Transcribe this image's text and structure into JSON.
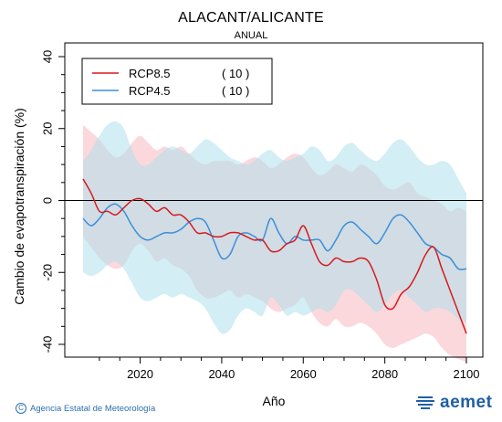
{
  "title": "ALACANT/ALICANTE",
  "subtitle": "ANUAL",
  "credit": "Agencia Estatal de Meteorología",
  "logo_text": "aemet",
  "chart_data": {
    "type": "line",
    "xlabel": "Año",
    "ylabel": "Cambio de evapotranspiración (%)",
    "xlim": [
      2006,
      2100
    ],
    "ylim": [
      -40,
      40
    ],
    "xticks": [
      2020,
      2040,
      2060,
      2080,
      2100
    ],
    "yticks": [
      -40,
      -20,
      0,
      20,
      40
    ],
    "zero_line": 0,
    "legend_position": "top-left",
    "x": [
      2006,
      2008,
      2010,
      2012,
      2014,
      2016,
      2018,
      2020,
      2022,
      2024,
      2026,
      2028,
      2030,
      2032,
      2034,
      2036,
      2038,
      2040,
      2042,
      2044,
      2046,
      2048,
      2050,
      2052,
      2054,
      2056,
      2058,
      2060,
      2062,
      2064,
      2066,
      2068,
      2070,
      2072,
      2074,
      2076,
      2078,
      2080,
      2082,
      2084,
      2086,
      2088,
      2090,
      2092,
      2094,
      2096,
      2098,
      2100
    ],
    "series": [
      {
        "name": "RCP8.5",
        "count": "( 10 )",
        "color": "#d7191c",
        "band_color": "#f6b8c0",
        "values": [
          6,
          2,
          -3,
          -3,
          -4,
          -2,
          0,
          0.5,
          -1,
          -3,
          -2,
          -4,
          -4,
          -6,
          -9,
          -9,
          -10,
          -10,
          -9,
          -9,
          -10,
          -11,
          -11,
          -14,
          -14,
          -12,
          -11,
          -7,
          -12,
          -17,
          -18,
          -16,
          -17,
          -17,
          -16,
          -17,
          -22,
          -29,
          -30,
          -26,
          -24,
          -20,
          -15,
          -13,
          -19,
          -25,
          -31,
          -37
        ],
        "upper": [
          21,
          19,
          17,
          14,
          12,
          13,
          16,
          18,
          16,
          14,
          15,
          14,
          15,
          13,
          11,
          10,
          11,
          11,
          11,
          10,
          11,
          12,
          11,
          9,
          10,
          12,
          13,
          12,
          9,
          7,
          8,
          10,
          9,
          8,
          10,
          9,
          7,
          4,
          3,
          4,
          5,
          2,
          1,
          0,
          -1,
          -3,
          -2,
          -3
        ],
        "lower": [
          -10,
          -13,
          -16,
          -18,
          -19,
          -18,
          -14,
          -12,
          -14,
          -17,
          -16,
          -18,
          -19,
          -21,
          -25,
          -27,
          -27,
          -26,
          -25,
          -27,
          -26,
          -27,
          -28,
          -30,
          -31,
          -30,
          -29,
          -27,
          -31,
          -34,
          -35,
          -33,
          -35,
          -35,
          -34,
          -35,
          -37,
          -40,
          -41,
          -40,
          -39,
          -38,
          -37,
          -38,
          -41,
          -43,
          -44,
          -45
        ]
      },
      {
        "name": "RCP4.5",
        "count": "( 10 )",
        "color": "#3a8fd8",
        "band_color": "#aee0ec",
        "values": [
          -5,
          -7,
          -5,
          -2,
          -1,
          -3,
          -7,
          -10,
          -11,
          -10,
          -9,
          -9,
          -8,
          -6,
          -5,
          -6,
          -11,
          -16,
          -15,
          -10,
          -9,
          -10,
          -11,
          -5,
          -9,
          -12,
          -10,
          -11,
          -11,
          -11,
          -14,
          -11,
          -7,
          -6,
          -8,
          -10,
          -12,
          -9,
          -5,
          -4,
          -6,
          -9,
          -12,
          -13,
          -15,
          -16,
          -19,
          -19
        ],
        "upper": [
          11,
          14,
          18,
          21,
          22,
          20,
          14,
          10,
          10,
          12,
          14,
          15,
          14,
          13,
          15,
          17,
          16,
          14,
          12,
          11,
          10,
          11,
          13,
          14,
          12,
          11,
          12,
          13,
          15,
          14,
          11,
          12,
          15,
          16,
          14,
          12,
          11,
          13,
          16,
          17,
          15,
          12,
          10,
          10,
          11,
          10,
          6,
          2
        ],
        "lower": [
          -20,
          -21,
          -20,
          -18,
          -17,
          -19,
          -23,
          -27,
          -28,
          -27,
          -26,
          -27,
          -26,
          -27,
          -28,
          -30,
          -34,
          -37,
          -36,
          -32,
          -30,
          -31,
          -32,
          -27,
          -29,
          -32,
          -31,
          -32,
          -31,
          -30,
          -31,
          -29,
          -25,
          -25,
          -27,
          -29,
          -31,
          -29,
          -26,
          -25,
          -27,
          -29,
          -31,
          -30,
          -30,
          -31,
          -33,
          -34
        ]
      }
    ]
  }
}
